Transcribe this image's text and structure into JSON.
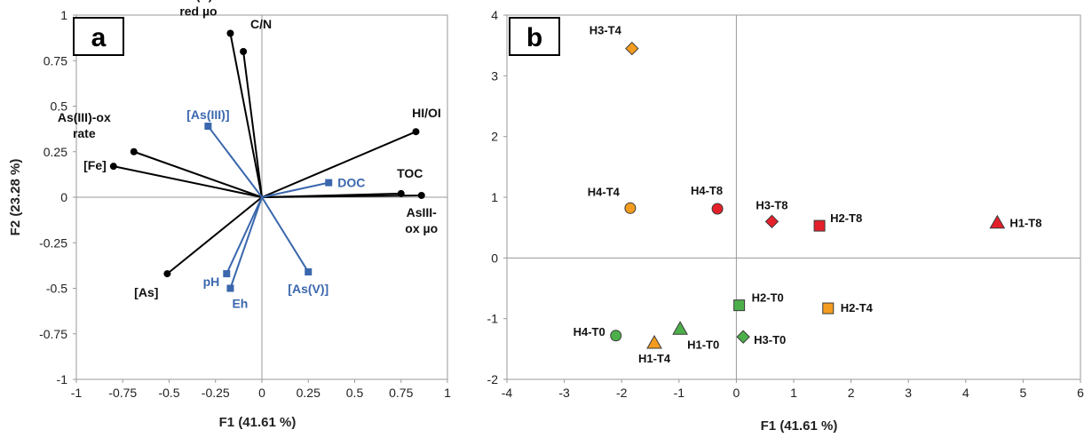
{
  "colors": {
    "black_vector": "#000000",
    "blue_vector": "#3a67ad",
    "T0": "#4daf4a",
    "T4": "#f39c1f",
    "T8": "#e4202a"
  },
  "chart_data": [
    {
      "panel": "a",
      "type": "scatter",
      "xlabel": "F1 (41.61 %)",
      "ylabel": "F2 (23.28 %)",
      "xlim": [
        -1,
        1
      ],
      "ylim": [
        -1,
        1
      ],
      "xticks": [
        "-1",
        "-0.75",
        "-0.5",
        "-0.25",
        "0",
        "0.25",
        "0.5",
        "0.75",
        "1"
      ],
      "yticks": [
        "-1",
        "-0.75",
        "-0.5",
        "-0.25",
        "0",
        "0.25",
        "0.5",
        "0.75",
        "1"
      ],
      "grid": false,
      "black_vectors": [
        {
          "label": [
            "As(V)-",
            "red µo"
          ],
          "x": -0.17,
          "y": 0.9
        },
        {
          "label": [
            "C/N"
          ],
          "x": -0.1,
          "y": 0.8
        },
        {
          "label": [
            "HI/OI"
          ],
          "x": 0.83,
          "y": 0.36
        },
        {
          "label": [
            "As(III)-ox",
            "rate"
          ],
          "x": -0.69,
          "y": 0.25
        },
        {
          "label": [
            "[Fe]"
          ],
          "x": -0.8,
          "y": 0.17
        },
        {
          "label": [
            "TOC"
          ],
          "x": 0.75,
          "y": 0.02
        },
        {
          "label": [
            "AsIII-",
            "ox µo"
          ],
          "x": 0.86,
          "y": 0.01
        },
        {
          "label": [
            "[As]"
          ],
          "x": -0.51,
          "y": -0.42
        }
      ],
      "blue_vectors": [
        {
          "label": [
            "[As(III)]"
          ],
          "x": -0.29,
          "y": 0.39
        },
        {
          "label": [
            "DOC"
          ],
          "x": 0.36,
          "y": 0.08
        },
        {
          "label": [
            "pH"
          ],
          "x": -0.19,
          "y": -0.42
        },
        {
          "label": [
            "Eh"
          ],
          "x": -0.17,
          "y": -0.5
        },
        {
          "label": [
            "[As(V)]"
          ],
          "x": 0.25,
          "y": -0.41
        }
      ]
    },
    {
      "panel": "b",
      "type": "scatter",
      "xlabel": "F1 (41.61 %)",
      "ylabel": "",
      "xlim": [
        -4,
        6
      ],
      "ylim": [
        -2,
        4
      ],
      "xticks": [
        "-4",
        "-3",
        "-2",
        "-1",
        "0",
        "1",
        "2",
        "3",
        "4",
        "5",
        "6"
      ],
      "yticks": [
        "-2",
        "-1",
        "0",
        "1",
        "2",
        "3",
        "4"
      ],
      "grid": false,
      "points": [
        {
          "label": "H3-T4",
          "x": -1.82,
          "y": 3.45,
          "marker": "diamond",
          "group": "T4"
        },
        {
          "label": "H4-T4",
          "x": -1.85,
          "y": 0.82,
          "marker": "circle",
          "group": "T4"
        },
        {
          "label": "H4-T8",
          "x": -0.33,
          "y": 0.81,
          "marker": "circle",
          "group": "T8"
        },
        {
          "label": "H3-T8",
          "x": 0.62,
          "y": 0.6,
          "marker": "diamond",
          "group": "T8"
        },
        {
          "label": "H2-T8",
          "x": 1.45,
          "y": 0.53,
          "marker": "square",
          "group": "T8"
        },
        {
          "label": "H1-T8",
          "x": 4.55,
          "y": 0.58,
          "marker": "triangle",
          "group": "T8"
        },
        {
          "label": "H2-T0",
          "x": 0.05,
          "y": -0.78,
          "marker": "square",
          "group": "T0"
        },
        {
          "label": "H2-T4",
          "x": 1.6,
          "y": -0.83,
          "marker": "square",
          "group": "T4"
        },
        {
          "label": "H4-T0",
          "x": -2.1,
          "y": -1.28,
          "marker": "circle",
          "group": "T0"
        },
        {
          "label": "H1-T4",
          "x": -1.43,
          "y": -1.4,
          "marker": "triangle",
          "group": "T4"
        },
        {
          "label": "H1-T0",
          "x": -0.98,
          "y": -1.17,
          "marker": "triangle",
          "group": "T0"
        },
        {
          "label": "H3-T0",
          "x": 0.12,
          "y": -1.3,
          "marker": "diamond",
          "group": "T0"
        }
      ]
    }
  ]
}
